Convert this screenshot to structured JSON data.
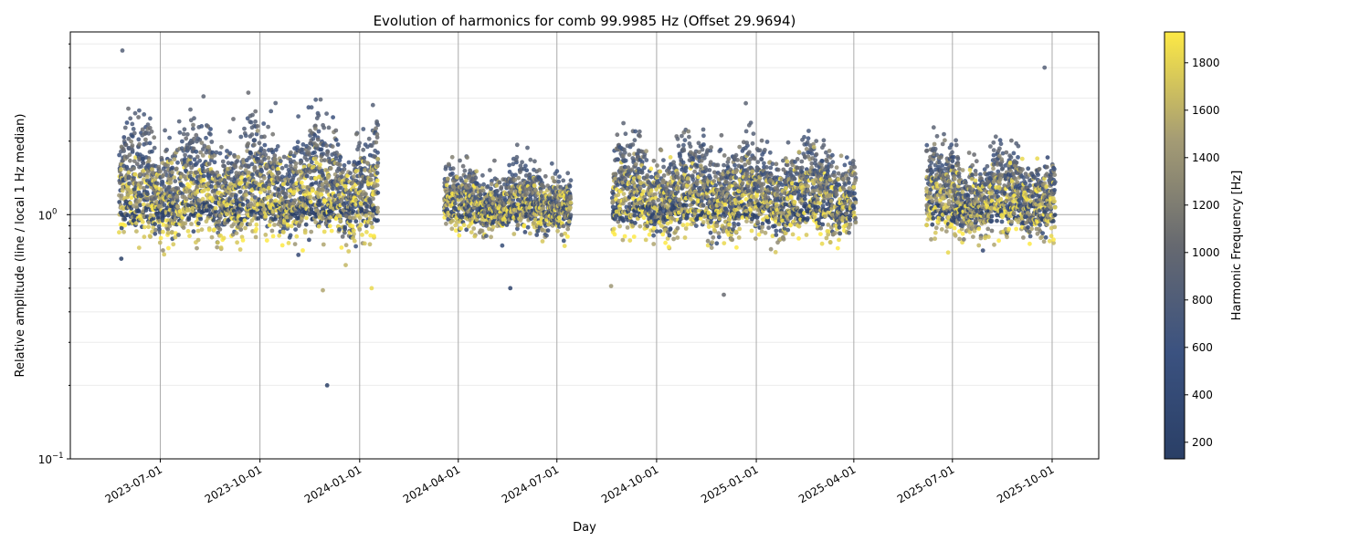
{
  "chart_data": {
    "type": "scatter",
    "title": "Evolution of harmonics for comb 99.9985 Hz (Offset 29.9694)",
    "xlabel": "Day",
    "ylabel": "Relative amplitude (line / local 1 Hz median)",
    "yscale": "log",
    "ylim": [
      0.1,
      5.6
    ],
    "xlim": [
      "2023-04-09",
      "2025-11-13"
    ],
    "y_ticks": [
      {
        "base": "10",
        "exp": "0",
        "value": 1
      },
      {
        "base": "10",
        "exp": "−1",
        "value": 0.1
      }
    ],
    "x_ticks": [
      "2023-07-01",
      "2023-10-01",
      "2024-01-01",
      "2024-04-01",
      "2024-07-01",
      "2024-10-01",
      "2025-01-01",
      "2025-04-01",
      "2025-07-01",
      "2025-10-01"
    ],
    "grid": true,
    "comb": {
      "spacing_hz": 99.9985,
      "offset_hz": 29.9694,
      "harmonics": 19
    },
    "colorbar": {
      "label": "Harmonic Frequency [Hz]",
      "colormap": "cividis",
      "range": [
        130,
        1930
      ],
      "ticks": [
        "200",
        "400",
        "600",
        "800",
        "1000",
        "1200",
        "1400",
        "1600",
        "1800"
      ],
      "colors": [
        "#2a3f66",
        "#3b5280",
        "#666970",
        "#a59c74",
        "#fde945"
      ]
    },
    "observation_periods": [
      {
        "start": "2023-05-24",
        "end": "2024-01-17",
        "spread": 1.0
      },
      {
        "start": "2024-03-19",
        "end": "2024-07-13",
        "spread": 0.45
      },
      {
        "start": "2024-08-21",
        "end": "2025-04-02",
        "spread": 0.8
      },
      {
        "start": "2025-06-07",
        "end": "2025-10-03",
        "spread": 0.7
      }
    ],
    "typical_amplitude": {
      "low_harmonics": 1.0,
      "mid_harmonics": 1.8,
      "high_harmonics": 1.2
    },
    "outliers": [
      {
        "date": "2023-12-02",
        "y": 0.2,
        "freq": 130
      },
      {
        "date": "2023-05-27",
        "y": 4.7,
        "freq": 830
      },
      {
        "date": "2023-05-26",
        "y": 0.66,
        "freq": 130
      },
      {
        "date": "2023-11-28",
        "y": 0.49,
        "freq": 1530
      },
      {
        "date": "2024-01-12",
        "y": 0.5,
        "freq": 1830
      },
      {
        "date": "2024-05-19",
        "y": 0.5,
        "freq": 230
      },
      {
        "date": "2024-08-20",
        "y": 0.51,
        "freq": 1430
      },
      {
        "date": "2024-12-02",
        "y": 0.47,
        "freq": 1030
      },
      {
        "date": "2025-06-27",
        "y": 0.7,
        "freq": 1830
      },
      {
        "date": "2025-09-24",
        "y": 4.0,
        "freq": 830
      }
    ]
  }
}
